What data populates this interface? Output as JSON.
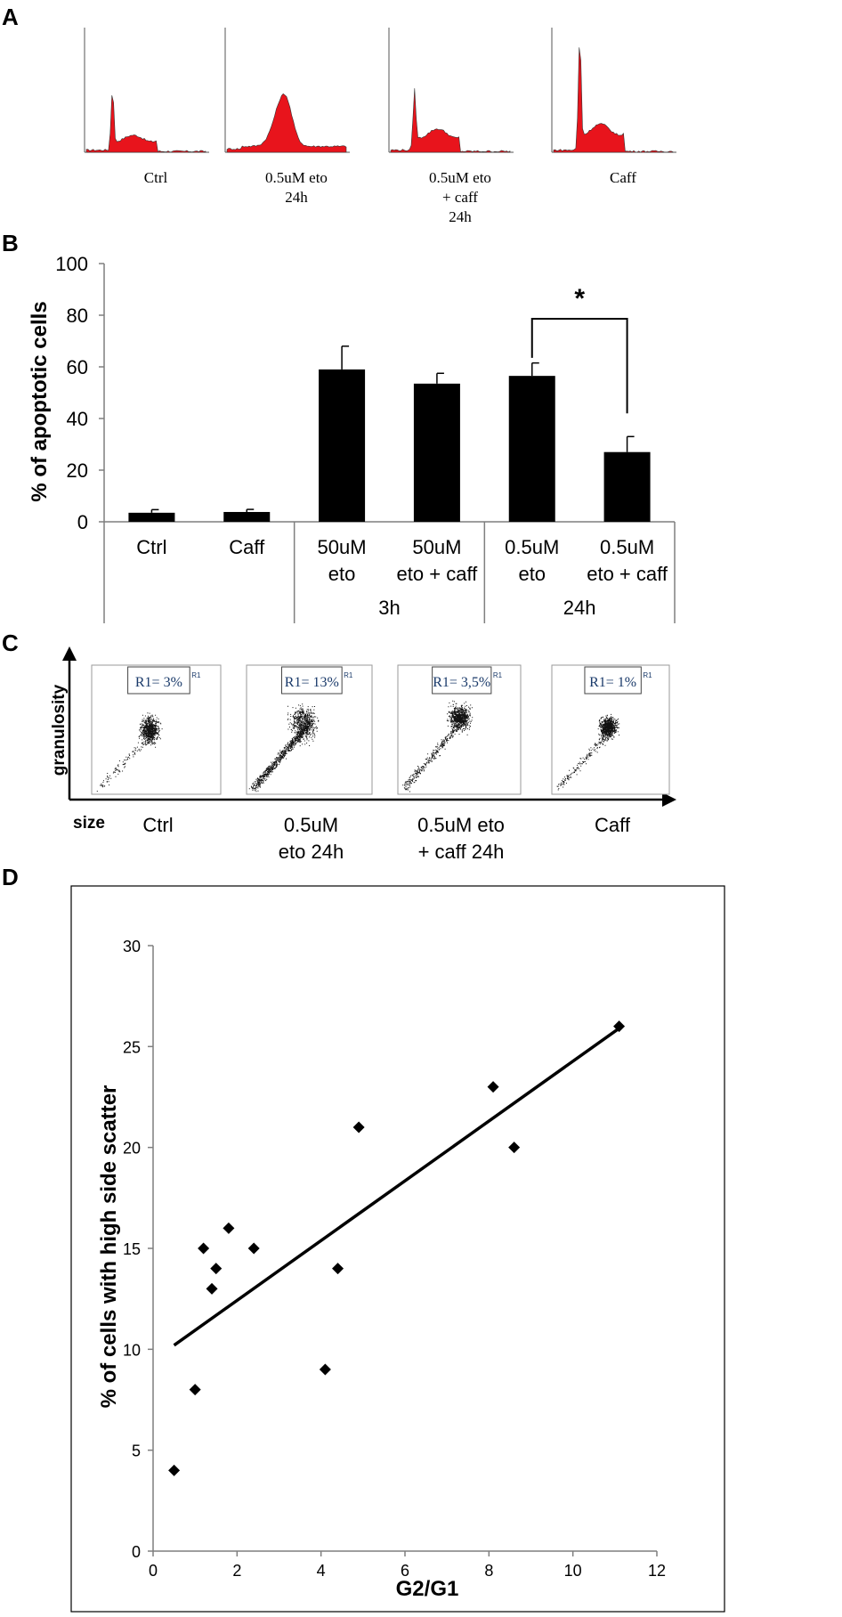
{
  "panel_labels": {
    "a": "A",
    "b": "B",
    "c": "C",
    "d": "D"
  },
  "colors": {
    "histogram_fill": "#e8141c",
    "bars": "#000000",
    "points": "#000000",
    "trendline": "#000000"
  },
  "panel_a": {
    "histograms": [
      {
        "label_lines": [
          "Ctrl"
        ]
      },
      {
        "label_lines": [
          "0.5uM eto",
          "24h"
        ]
      },
      {
        "label_lines": [
          "0.5uM eto",
          "+ caff",
          "24h"
        ]
      },
      {
        "label_lines": [
          "Caff"
        ]
      }
    ]
  },
  "panel_c": {
    "x_axis_label": "size",
    "y_axis_label": "granulosity",
    "plots": [
      {
        "label_lines": [
          "Ctrl"
        ],
        "region_text": "R1= 3%",
        "region_tag": "R1"
      },
      {
        "label_lines": [
          "0.5uM",
          "eto 24h"
        ],
        "region_text": "R1= 13%",
        "region_tag": "R1"
      },
      {
        "label_lines": [
          "0.5uM eto",
          "+ caff 24h"
        ],
        "region_text": "R1= 3,5%",
        "region_tag": "R1"
      },
      {
        "label_lines": [
          "Caff"
        ],
        "region_text": "R1= 1%",
        "region_tag": "R1"
      }
    ]
  },
  "chart_data": [
    {
      "type": "bar",
      "panel": "B",
      "ylabel": "% of apoptotic cells",
      "ylim": [
        0,
        100
      ],
      "yticks": [
        0,
        20,
        40,
        60,
        80,
        100
      ],
      "categories": [
        {
          "lines": [
            "Ctrl"
          ]
        },
        {
          "lines": [
            "Caff"
          ]
        },
        {
          "lines": [
            "50uM",
            "eto"
          ]
        },
        {
          "lines": [
            "50uM",
            "eto + caff"
          ]
        },
        {
          "lines": [
            "0.5uM",
            "eto"
          ]
        },
        {
          "lines": [
            "0.5uM",
            "eto + caff"
          ]
        }
      ],
      "values": [
        3.5,
        3.8,
        59,
        53.5,
        56.5,
        27
      ],
      "errors": [
        1.2,
        1.0,
        9,
        4,
        5,
        6
      ],
      "groups": [
        {
          "label": "3h",
          "categories": [
            2,
            3
          ]
        },
        {
          "label": "24h",
          "categories": [
            4,
            5
          ]
        }
      ],
      "significance": {
        "between": [
          4,
          5
        ],
        "label": "*"
      }
    },
    {
      "type": "scatter",
      "panel": "D",
      "xlabel": "G2/G1",
      "ylabel": "% of cells with high side scatter",
      "xlim": [
        0,
        12
      ],
      "ylim": [
        0,
        30
      ],
      "xticks": [
        0,
        2,
        4,
        6,
        8,
        10,
        12
      ],
      "yticks": [
        0,
        5,
        10,
        15,
        20,
        25,
        30
      ],
      "points": [
        {
          "x": 0.5,
          "y": 4
        },
        {
          "x": 1.0,
          "y": 8
        },
        {
          "x": 1.2,
          "y": 15
        },
        {
          "x": 1.4,
          "y": 13
        },
        {
          "x": 1.5,
          "y": 14
        },
        {
          "x": 1.8,
          "y": 16
        },
        {
          "x": 2.4,
          "y": 15
        },
        {
          "x": 4.1,
          "y": 9
        },
        {
          "x": 4.4,
          "y": 14
        },
        {
          "x": 4.9,
          "y": 21
        },
        {
          "x": 8.1,
          "y": 23
        },
        {
          "x": 8.6,
          "y": 20
        },
        {
          "x": 11.1,
          "y": 26
        }
      ],
      "trendline": {
        "x0": 0.5,
        "y0": 10.2,
        "x1": 11.1,
        "y1": 25.9
      },
      "grid": false
    }
  ]
}
